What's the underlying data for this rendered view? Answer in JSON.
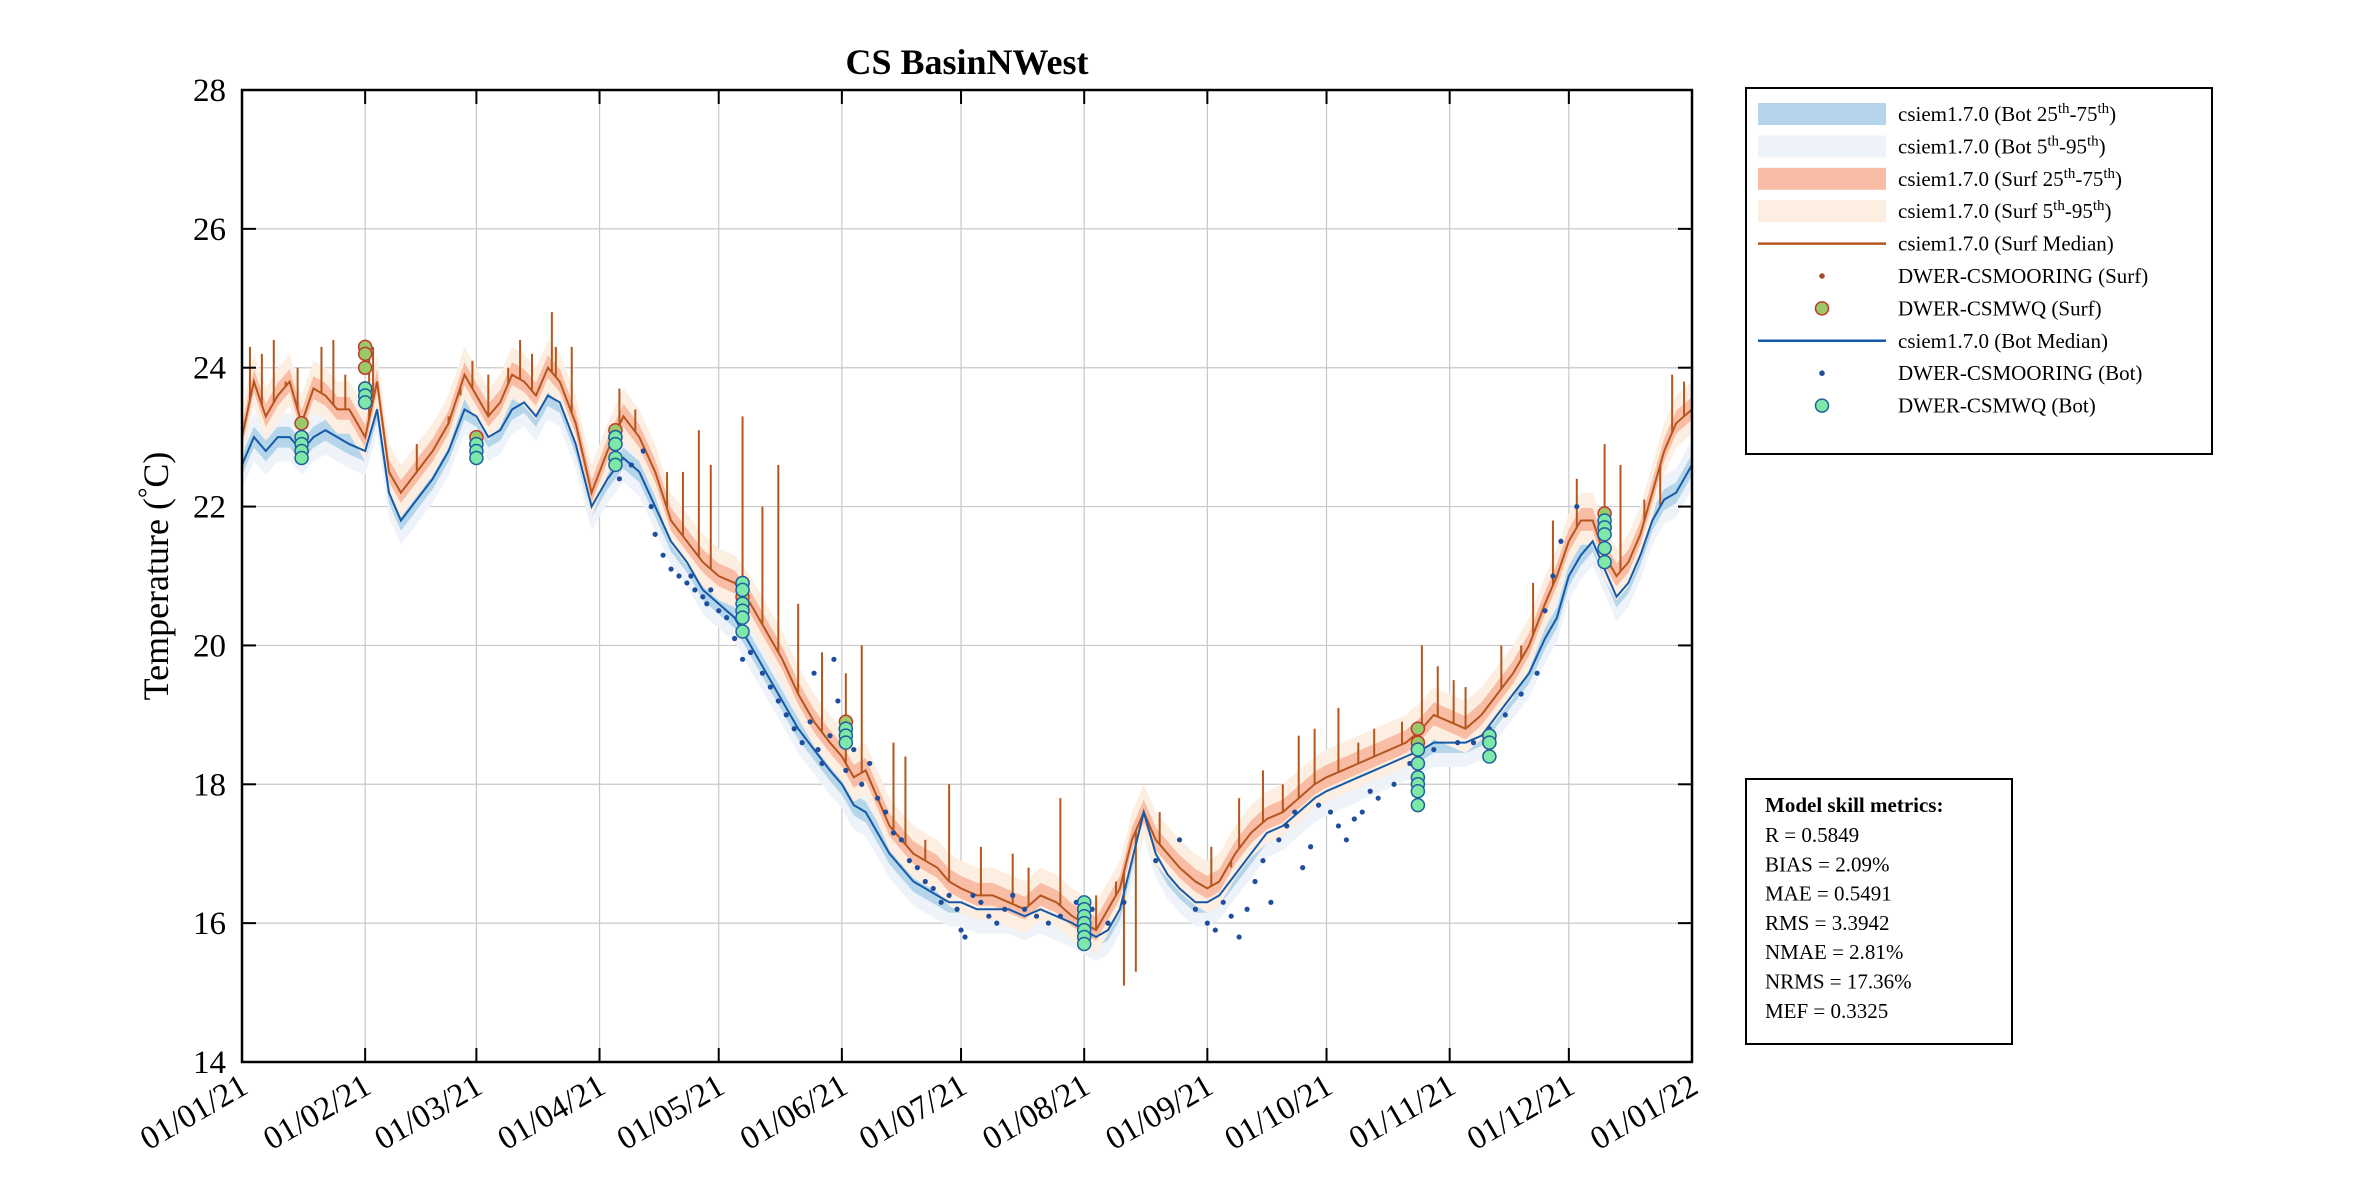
{
  "chart_data": {
    "type": "line",
    "title": "CS BasinNWest",
    "ylabel_prefix": "Temperature (",
    "ylabel_degree": "°",
    "ylabel_suffix": "C)",
    "xlabel": "",
    "ylim": [
      14,
      28
    ],
    "yticks": [
      14,
      16,
      18,
      20,
      22,
      24,
      26,
      28
    ],
    "xlim_days": [
      0,
      365
    ],
    "xticks": [
      {
        "label": "01/01/21",
        "day": 0
      },
      {
        "label": "01/02/21",
        "day": 31
      },
      {
        "label": "01/03/21",
        "day": 59
      },
      {
        "label": "01/04/21",
        "day": 90
      },
      {
        "label": "01/05/21",
        "day": 120
      },
      {
        "label": "01/06/21",
        "day": 151
      },
      {
        "label": "01/07/21",
        "day": 181
      },
      {
        "label": "01/08/21",
        "day": 212
      },
      {
        "label": "01/09/21",
        "day": 243
      },
      {
        "label": "01/10/21",
        "day": 273
      },
      {
        "label": "01/11/21",
        "day": 304
      },
      {
        "label": "01/12/21",
        "day": 334
      },
      {
        "label": "01/01/22",
        "day": 365
      }
    ],
    "grid": true,
    "colors": {
      "surf_line": "#b5561e",
      "bot_line": "#155aa8",
      "mooring_bot": "#1f4e9c",
      "mooring_surf": "#a0522d",
      "surf_band_25_75": "#f9bda6",
      "surf_band_5_95": "#fdeee2",
      "bot_band_25_75": "#b5d5ea",
      "bot_band_5_95": "#eef3fa",
      "wq_surf_fill": "#9ac96a",
      "wq_surf_edge": "#c0392b",
      "wq_bot_fill": "#7ee8a8",
      "wq_bot_edge": "#1f5fa0",
      "grid": "#c8c8c8"
    },
    "series": [
      {
        "name": "csiem1.7.0 (Surf Median)",
        "kind": "line",
        "x": [
          0,
          3,
          6,
          9,
          12,
          15,
          18,
          21,
          24,
          27,
          31,
          34,
          37,
          40,
          44,
          48,
          52,
          56,
          59,
          62,
          65,
          68,
          71,
          74,
          77,
          80,
          84,
          88,
          92,
          96,
          100,
          104,
          108,
          112,
          116,
          120,
          124,
          128,
          132,
          136,
          140,
          144,
          148,
          151,
          154,
          157,
          160,
          163,
          166,
          169,
          172,
          175,
          178,
          181,
          185,
          189,
          193,
          197,
          201,
          205,
          209,
          212,
          215,
          218,
          221,
          224,
          227,
          230,
          233,
          236,
          240,
          243,
          246,
          250,
          254,
          258,
          262,
          266,
          270,
          273,
          277,
          281,
          285,
          289,
          293,
          297,
          300,
          304,
          308,
          312,
          316,
          320,
          324,
          328,
          331,
          334,
          337,
          340,
          343,
          346,
          349,
          352,
          355,
          358,
          361,
          365
        ],
        "y": [
          23.0,
          23.8,
          23.3,
          23.6,
          23.8,
          23.2,
          23.7,
          23.6,
          23.4,
          23.4,
          23.0,
          23.8,
          22.5,
          22.2,
          22.5,
          22.8,
          23.2,
          23.9,
          23.6,
          23.3,
          23.5,
          23.9,
          23.8,
          23.6,
          24.0,
          23.8,
          23.2,
          22.2,
          22.8,
          23.3,
          23.0,
          22.5,
          21.8,
          21.5,
          21.2,
          21.0,
          20.9,
          20.6,
          20.2,
          19.8,
          19.3,
          18.9,
          18.6,
          18.4,
          18.1,
          18.2,
          17.8,
          17.4,
          17.2,
          17.0,
          16.9,
          16.8,
          16.6,
          16.5,
          16.4,
          16.4,
          16.3,
          16.2,
          16.4,
          16.3,
          16.1,
          16.0,
          15.9,
          16.2,
          16.5,
          17.2,
          17.6,
          17.2,
          17.0,
          16.8,
          16.6,
          16.5,
          16.6,
          17.0,
          17.3,
          17.5,
          17.6,
          17.8,
          18.0,
          18.1,
          18.2,
          18.3,
          18.4,
          18.5,
          18.6,
          18.8,
          19.0,
          18.9,
          18.8,
          19.0,
          19.3,
          19.6,
          20.0,
          20.6,
          21.0,
          21.5,
          21.8,
          21.8,
          21.3,
          21.0,
          21.2,
          21.6,
          22.2,
          22.8,
          23.2,
          23.4
        ]
      },
      {
        "name": "csiem1.7.0 (Bot Median)",
        "kind": "line",
        "x": [
          0,
          3,
          6,
          9,
          12,
          15,
          18,
          21,
          24,
          27,
          31,
          34,
          37,
          40,
          44,
          48,
          52,
          56,
          59,
          62,
          65,
          68,
          71,
          74,
          77,
          80,
          84,
          88,
          92,
          96,
          100,
          104,
          108,
          112,
          116,
          120,
          124,
          128,
          132,
          136,
          140,
          144,
          148,
          151,
          154,
          157,
          160,
          163,
          166,
          169,
          172,
          175,
          178,
          181,
          185,
          189,
          193,
          197,
          201,
          205,
          209,
          212,
          215,
          218,
          221,
          224,
          227,
          230,
          233,
          236,
          240,
          243,
          246,
          250,
          254,
          258,
          262,
          266,
          270,
          273,
          277,
          281,
          285,
          289,
          293,
          297,
          300,
          304,
          308,
          312,
          316,
          320,
          324,
          328,
          331,
          334,
          337,
          340,
          343,
          346,
          349,
          352,
          355,
          358,
          361,
          365
        ],
        "y": [
          22.6,
          23.0,
          22.8,
          23.0,
          23.0,
          22.8,
          23.0,
          23.1,
          23.0,
          22.9,
          22.8,
          23.4,
          22.2,
          21.8,
          22.1,
          22.4,
          22.8,
          23.4,
          23.3,
          23.0,
          23.1,
          23.4,
          23.5,
          23.3,
          23.6,
          23.5,
          22.9,
          22.0,
          22.4,
          22.7,
          22.5,
          22.0,
          21.5,
          21.2,
          20.8,
          20.6,
          20.4,
          20.0,
          19.6,
          19.2,
          18.8,
          18.5,
          18.2,
          18.0,
          17.7,
          17.6,
          17.3,
          17.0,
          16.8,
          16.6,
          16.5,
          16.4,
          16.3,
          16.3,
          16.2,
          16.2,
          16.2,
          16.1,
          16.2,
          16.1,
          16.0,
          15.9,
          15.8,
          15.9,
          16.2,
          16.9,
          17.6,
          17.0,
          16.7,
          16.5,
          16.3,
          16.3,
          16.4,
          16.7,
          17.0,
          17.3,
          17.4,
          17.6,
          17.8,
          17.9,
          18.0,
          18.1,
          18.2,
          18.3,
          18.4,
          18.5,
          18.6,
          18.6,
          18.6,
          18.7,
          19.0,
          19.3,
          19.6,
          20.1,
          20.4,
          21.0,
          21.3,
          21.5,
          21.1,
          20.7,
          20.9,
          21.3,
          21.8,
          22.1,
          22.2,
          22.6
        ]
      }
    ],
    "spikes": {
      "name": "surf variability",
      "x": [
        2,
        5,
        8,
        11,
        14,
        20,
        23,
        26,
        32,
        33,
        44,
        52,
        55,
        58,
        62,
        67,
        70,
        73,
        78,
        79,
        83,
        95,
        99,
        107,
        111,
        115,
        118,
        126,
        131,
        135,
        140,
        146,
        152,
        156,
        164,
        167,
        172,
        178,
        186,
        194,
        198,
        206,
        215,
        220,
        222,
        225,
        231,
        244,
        249,
        251,
        257,
        262,
        266,
        270,
        276,
        281,
        285,
        292,
        297,
        301,
        305,
        308,
        317,
        322,
        325,
        330,
        336,
        343,
        347,
        353,
        357,
        360,
        363
      ],
      "y": [
        24.3,
        24.2,
        24.4,
        23.8,
        24.0,
        24.3,
        24.4,
        23.9,
        24.3,
        24.3,
        22.9,
        23.3,
        23.6,
        24.1,
        23.9,
        24.0,
        24.4,
        24.2,
        24.8,
        24.3,
        24.3,
        23.7,
        23.4,
        22.5,
        22.5,
        23.1,
        22.6,
        23.3,
        22.0,
        22.6,
        20.6,
        19.9,
        19.6,
        20.0,
        18.6,
        18.4,
        17.2,
        18.0,
        17.1,
        17.0,
        16.8,
        17.8,
        16.4,
        16.6,
        15.1,
        15.3,
        17.6,
        17.1,
        16.8,
        17.8,
        18.2,
        18.0,
        18.7,
        18.8,
        19.1,
        18.6,
        18.8,
        18.9,
        20.0,
        19.7,
        19.5,
        19.4,
        20.0,
        20.0,
        20.9,
        21.8,
        22.4,
        22.9,
        22.6,
        22.1,
        22.0,
        23.9,
        23.8
      ]
    },
    "mooring_bot": {
      "name": "DWER-CSMOORING (Bot)",
      "x": [
        95,
        98,
        101,
        103,
        104,
        106,
        108,
        110,
        112,
        113,
        114,
        116,
        117,
        118,
        120,
        122,
        124,
        126,
        128,
        131,
        133,
        135,
        137,
        139,
        141,
        143,
        144,
        145,
        146,
        148,
        149,
        150,
        152,
        154,
        156,
        158,
        160,
        162,
        164,
        166,
        168,
        170,
        172,
        174,
        176,
        178,
        180,
        181,
        182,
        184,
        186,
        188,
        190,
        192,
        194,
        197,
        200,
        203,
        206,
        210,
        214,
        218,
        222,
        230,
        236,
        240,
        243,
        245,
        247,
        249,
        251,
        253,
        255,
        257,
        259,
        261,
        263,
        265,
        267,
        269,
        271,
        274,
        276,
        278,
        280,
        282,
        284,
        286,
        290,
        294,
        300,
        306,
        310,
        314,
        318,
        322,
        326,
        328,
        330,
        332,
        336
      ],
      "y": [
        22.4,
        22.6,
        22.8,
        22.0,
        21.6,
        21.3,
        21.1,
        21.0,
        20.9,
        21.0,
        20.8,
        20.7,
        20.6,
        20.8,
        20.5,
        20.4,
        20.1,
        19.8,
        19.9,
        19.6,
        19.4,
        19.2,
        19.0,
        18.8,
        18.6,
        18.9,
        19.6,
        18.5,
        18.3,
        18.7,
        19.8,
        19.2,
        18.2,
        18.5,
        18.0,
        18.3,
        17.8,
        17.6,
        17.3,
        17.2,
        16.9,
        16.8,
        16.6,
        16.5,
        16.3,
        16.4,
        16.2,
        15.9,
        15.8,
        16.4,
        16.3,
        16.1,
        16.0,
        16.2,
        16.4,
        16.2,
        16.1,
        16.0,
        16.1,
        16.3,
        16.2,
        16.0,
        16.3,
        16.9,
        17.2,
        16.2,
        16.0,
        15.9,
        16.3,
        16.1,
        15.8,
        16.2,
        16.6,
        16.9,
        16.3,
        17.2,
        17.4,
        17.6,
        16.8,
        17.1,
        17.7,
        17.6,
        17.4,
        17.2,
        17.5,
        17.6,
        17.9,
        17.8,
        18.0,
        18.3,
        18.5,
        18.6,
        18.6,
        18.8,
        19.0,
        19.3,
        19.6,
        20.5,
        21.0,
        21.5,
        22.0
      ]
    },
    "wq_surf": {
      "name": "DWER-CSMWQ (Surf)",
      "x": [
        15,
        15,
        15,
        31,
        31,
        31,
        31,
        59,
        59,
        94,
        94,
        94,
        126,
        126,
        152,
        152,
        212,
        212,
        212,
        296,
        296,
        296,
        314,
        314,
        343,
        343
      ],
      "y": [
        23.2,
        23.0,
        22.8,
        24.3,
        24.2,
        24.0,
        23.7,
        22.9,
        23.0,
        23.1,
        23.0,
        22.9,
        20.9,
        20.7,
        18.9,
        18.8,
        16.2,
        16.1,
        16.0,
        18.8,
        18.6,
        18.5,
        18.7,
        18.6,
        21.9,
        21.7
      ]
    },
    "wq_bot": {
      "name": "DWER-CSMWQ (Bot)",
      "x": [
        15,
        15,
        15,
        15,
        31,
        31,
        31,
        59,
        59,
        59,
        94,
        94,
        94,
        94,
        126,
        126,
        126,
        126,
        126,
        126,
        152,
        152,
        152,
        212,
        212,
        212,
        212,
        212,
        212,
        212,
        296,
        296,
        296,
        296,
        296,
        296,
        314,
        314,
        314,
        343,
        343,
        343,
        343,
        343
      ],
      "y": [
        23.0,
        22.9,
        22.8,
        22.7,
        23.7,
        23.6,
        23.5,
        22.9,
        22.8,
        22.7,
        23.0,
        22.9,
        22.7,
        22.6,
        20.9,
        20.8,
        20.6,
        20.5,
        20.4,
        20.2,
        18.8,
        18.7,
        18.6,
        16.3,
        16.2,
        16.1,
        16.0,
        15.9,
        15.8,
        15.7,
        18.5,
        18.3,
        18.1,
        18.0,
        17.9,
        17.7,
        18.7,
        18.6,
        18.4,
        21.8,
        21.7,
        21.6,
        21.4,
        21.2
      ]
    },
    "legend": {
      "placement": "top-right outside",
      "entries": [
        {
          "name": "bot-band-25-75",
          "kind": "band",
          "color": "#b5d5ea",
          "label": "csiem1.7.0 (Bot 25",
          "mid": "-75",
          "sup1": "th",
          "sup2": "th",
          "tail": ")"
        },
        {
          "name": "bot-band-5-95",
          "kind": "band",
          "color": "#eef3fa",
          "label": "csiem1.7.0 (Bot 5",
          "mid": "-95",
          "sup1": "th",
          "sup2": "th",
          "tail": ")"
        },
        {
          "name": "surf-band-25-75",
          "kind": "band",
          "color": "#f9bda6",
          "label": "csiem1.7.0 (Surf 25",
          "mid": "-75",
          "sup1": "th",
          "sup2": "th",
          "tail": ")"
        },
        {
          "name": "surf-band-5-95",
          "kind": "band",
          "color": "#fdeee2",
          "label": "csiem1.7.0 (Surf 5",
          "mid": "-95",
          "sup1": "th",
          "sup2": "th",
          "tail": ")"
        },
        {
          "name": "surf-median",
          "kind": "line",
          "color": "#b5561e",
          "label": "csiem1.7.0 (Surf Median)"
        },
        {
          "name": "mooring-surf",
          "kind": "dot",
          "color": "#a0522d",
          "label": "DWER-CSMOORING (Surf)"
        },
        {
          "name": "wq-surf",
          "kind": "circle",
          "color": "#9ac96a",
          "edge": "#c0392b",
          "label": "DWER-CSMWQ (Surf)"
        },
        {
          "name": "bot-median",
          "kind": "line",
          "color": "#155aa8",
          "label": "csiem1.7.0 (Bot Median)"
        },
        {
          "name": "mooring-bot",
          "kind": "dot",
          "color": "#1f4e9c",
          "label": "DWER-CSMOORING (Bot)"
        },
        {
          "name": "wq-bot",
          "kind": "circle",
          "color": "#7ee8a8",
          "edge": "#1f5fa0",
          "label": "DWER-CSMWQ (Bot)"
        }
      ]
    },
    "metrics": {
      "title": "Model skill metrics:",
      "lines": [
        "R    = 0.5849",
        "BIAS = 2.09%",
        "MAE  = 0.5491",
        "RMS  = 3.3942",
        "NMAE = 2.81%",
        "NRMS = 17.36%",
        "MEF  = 0.3325"
      ]
    }
  }
}
